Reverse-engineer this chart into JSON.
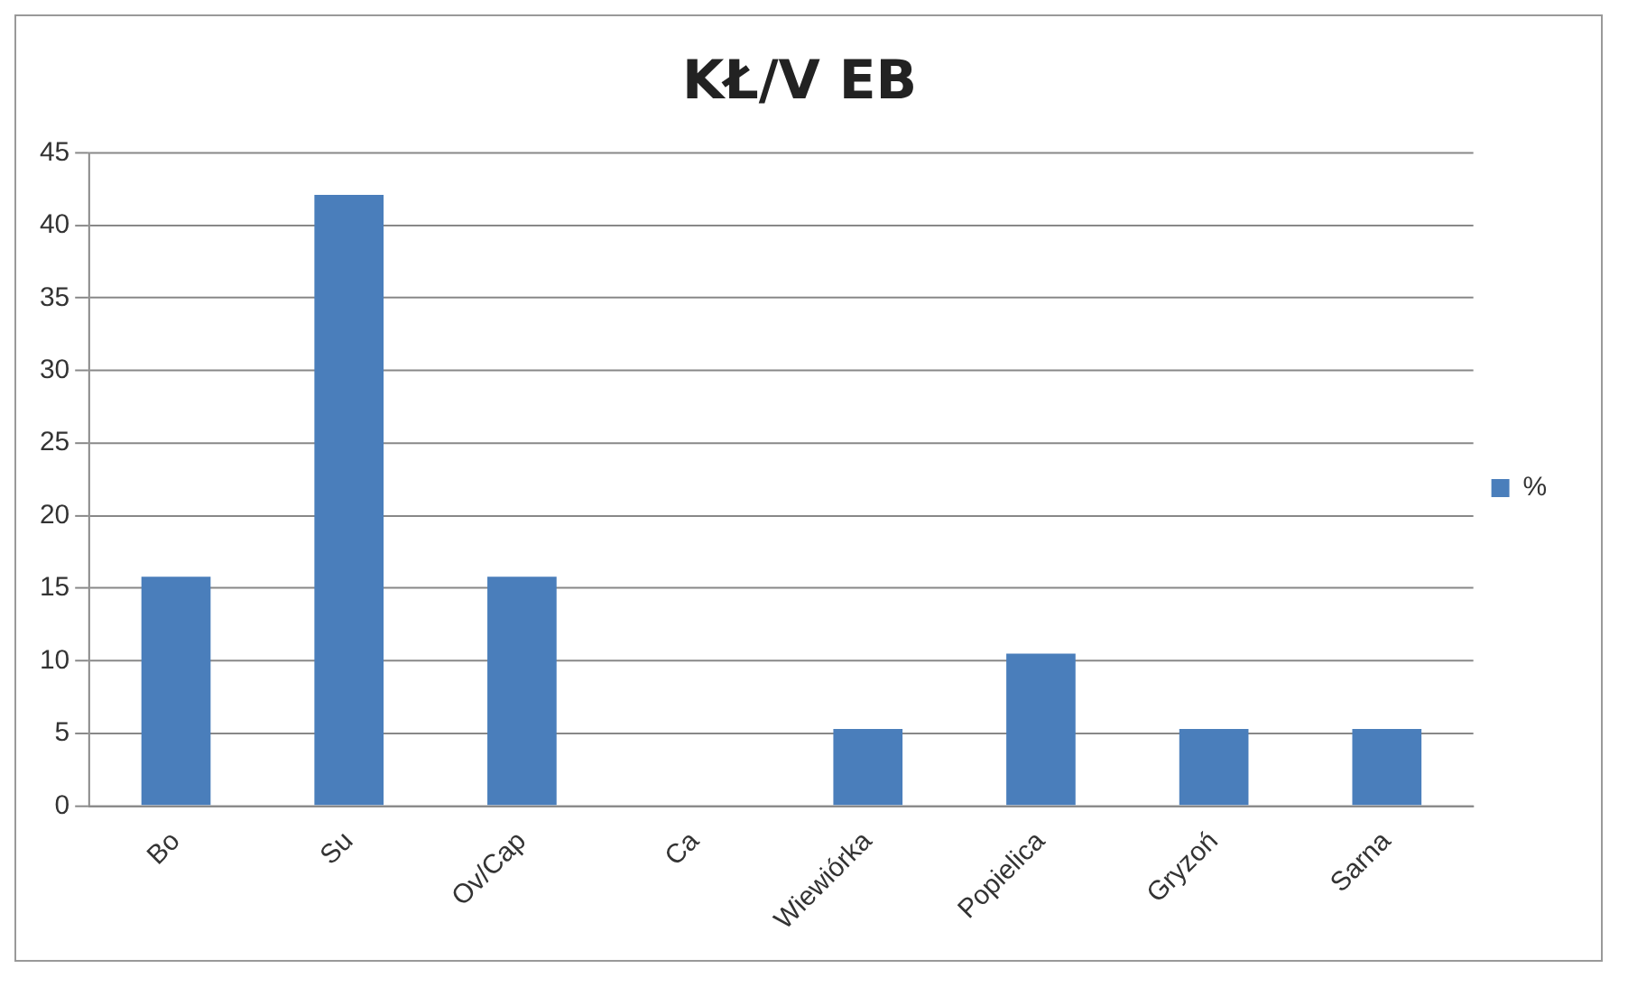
{
  "chart_data": {
    "type": "bar",
    "title": "KŁ/V EB",
    "categories": [
      "Bo",
      "Su",
      "Ov/Cap",
      "Ca",
      "Wiewiórka",
      "Popielica",
      "Gryzoń",
      "Sarna"
    ],
    "series": [
      {
        "name": "%",
        "color": "#4a7ebb",
        "values": [
          15.8,
          42.1,
          15.8,
          0,
          5.3,
          10.5,
          5.3,
          5.3
        ]
      }
    ],
    "ylim": [
      0,
      45
    ],
    "yticks": [
      0,
      5,
      10,
      15,
      20,
      25,
      30,
      35,
      40,
      45
    ],
    "grid": "y",
    "legend": "right"
  }
}
